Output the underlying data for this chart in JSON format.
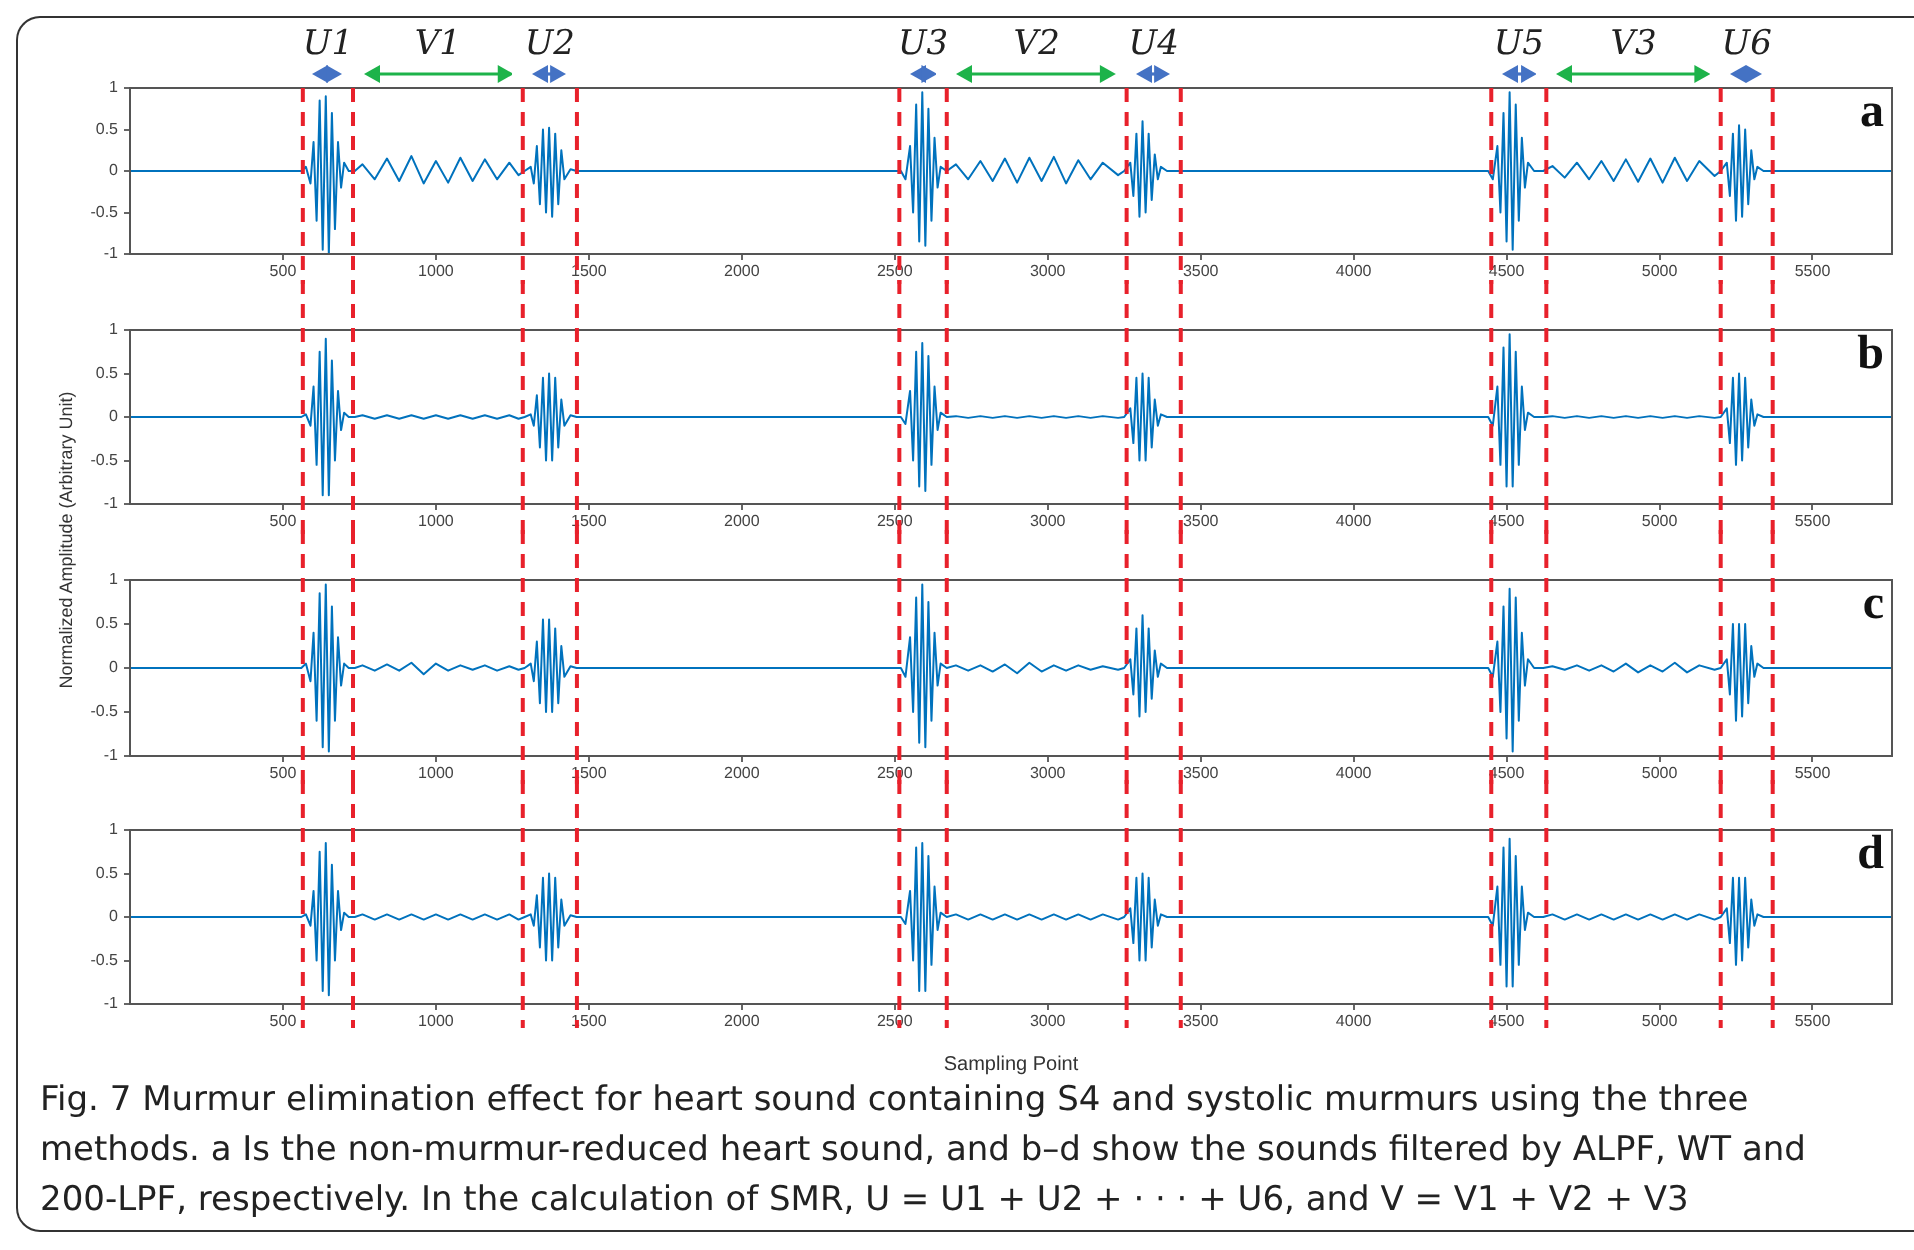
{
  "chart_data": [
    {
      "type": "line",
      "color": "#0072bd",
      "xlim": [
        0,
        5760
      ],
      "xticks": [
        500,
        1000,
        1500,
        2000,
        2500,
        3000,
        3500,
        4000,
        4500,
        5000,
        5500
      ],
      "ylim": [
        -1,
        1
      ],
      "yticks": [
        -1,
        -0.5,
        0,
        0.5,
        1
      ],
      "grid": false,
      "x": [
        0,
        540,
        560,
        575,
        590,
        600,
        610,
        620,
        630,
        640,
        650,
        660,
        670,
        680,
        690,
        700,
        715,
        735,
        760,
        800,
        840,
        880,
        920,
        960,
        1000,
        1040,
        1080,
        1120,
        1160,
        1200,
        1240,
        1270,
        1290,
        1310,
        1320,
        1330,
        1340,
        1350,
        1360,
        1370,
        1380,
        1390,
        1400,
        1410,
        1420,
        1440,
        1460,
        2000,
        2500,
        2520,
        2535,
        2550,
        2560,
        2570,
        2580,
        2590,
        2600,
        2610,
        2620,
        2630,
        2640,
        2650,
        2670,
        2700,
        2740,
        2780,
        2820,
        2860,
        2900,
        2940,
        2980,
        3020,
        3060,
        3100,
        3140,
        3180,
        3230,
        3250,
        3270,
        3280,
        3290,
        3300,
        3310,
        3320,
        3330,
        3340,
        3350,
        3360,
        3370,
        3390,
        3420,
        4000,
        4420,
        4440,
        4455,
        4470,
        4480,
        4490,
        4500,
        4510,
        4520,
        4530,
        4540,
        4550,
        4560,
        4570,
        4590,
        4620,
        4650,
        4690,
        4730,
        4770,
        4810,
        4850,
        4890,
        4930,
        4970,
        5010,
        5050,
        5090,
        5130,
        5180,
        5200,
        5220,
        5230,
        5240,
        5250,
        5260,
        5270,
        5280,
        5290,
        5300,
        5310,
        5320,
        5340,
        5370,
        5760
      ],
      "values": [
        0,
        0,
        0,
        0.05,
        -0.15,
        0.35,
        -0.6,
        0.85,
        -0.95,
        0.9,
        -1,
        0.7,
        -0.7,
        0.35,
        -0.2,
        0.1,
        0,
        0,
        0.08,
        -0.1,
        0.15,
        -0.12,
        0.18,
        -0.15,
        0.12,
        -0.14,
        0.16,
        -0.12,
        0.14,
        -0.1,
        0.1,
        -0.05,
        0,
        0.05,
        -0.15,
        0.3,
        -0.4,
        0.5,
        -0.5,
        0.52,
        -0.55,
        0.45,
        -0.4,
        0.25,
        -0.1,
        0.02,
        0,
        0,
        0,
        0,
        -0.1,
        0.3,
        -0.5,
        0.8,
        -0.85,
        0.95,
        -0.9,
        0.75,
        -0.6,
        0.4,
        -0.2,
        0.05,
        0,
        0.08,
        -0.1,
        0.12,
        -0.12,
        0.15,
        -0.14,
        0.16,
        -0.12,
        0.17,
        -0.15,
        0.13,
        -0.1,
        0.1,
        -0.05,
        0,
        0.1,
        -0.3,
        0.45,
        -0.55,
        0.6,
        -0.5,
        0.45,
        -0.35,
        0.2,
        -0.1,
        0.05,
        0,
        0,
        0,
        0,
        0,
        -0.1,
        0.3,
        -0.5,
        0.7,
        -0.85,
        0.95,
        -0.95,
        0.8,
        -0.6,
        0.4,
        -0.2,
        0.1,
        0,
        0,
        0.06,
        -0.08,
        0.1,
        -0.1,
        0.12,
        -0.12,
        0.14,
        -0.13,
        0.15,
        -0.14,
        0.16,
        -0.12,
        0.12,
        -0.06,
        0,
        0.1,
        -0.3,
        0.45,
        -0.6,
        0.55,
        -0.55,
        0.5,
        -0.4,
        0.25,
        -0.1,
        0.05,
        0,
        0,
        0
      ],
      "ref_lines": [
        {
          "axis": "x",
          "value": 565,
          "color": "#e8212b",
          "line_style": "dashed"
        },
        {
          "axis": "x",
          "value": 729,
          "color": "#e8212b",
          "line_style": "dashed"
        },
        {
          "axis": "x",
          "value": 1284,
          "color": "#e8212b",
          "line_style": "dashed"
        },
        {
          "axis": "x",
          "value": 1461,
          "color": "#e8212b",
          "line_style": "dashed"
        },
        {
          "axis": "x",
          "value": 2515,
          "color": "#e8212b",
          "line_style": "dashed"
        },
        {
          "axis": "x",
          "value": 2670,
          "color": "#e8212b",
          "line_style": "dashed"
        },
        {
          "axis": "x",
          "value": 3258,
          "color": "#e8212b",
          "line_style": "dashed"
        },
        {
          "axis": "x",
          "value": 3435,
          "color": "#e8212b",
          "line_style": "dashed"
        },
        {
          "axis": "x",
          "value": 4450,
          "color": "#e8212b",
          "line_style": "dashed"
        },
        {
          "axis": "x",
          "value": 4630,
          "color": "#e8212b",
          "line_style": "dashed"
        },
        {
          "axis": "x",
          "value": 5200,
          "color": "#e8212b",
          "line_style": "dashed"
        },
        {
          "axis": "x",
          "value": 5370,
          "color": "#e8212b",
          "line_style": "dashed"
        }
      ],
      "annotations": [
        "a",
        "U1",
        "V1",
        "U2",
        "U3",
        "V2",
        "U4",
        "U5",
        "V3",
        "U6"
      ]
    },
    {
      "type": "line",
      "color": "#0072bd",
      "xlim": [
        0,
        5760
      ],
      "xticks": [
        500,
        1000,
        1500,
        2000,
        2500,
        3000,
        3500,
        4000,
        4500,
        5000,
        5500
      ],
      "ylim": [
        -1,
        1
      ],
      "yticks": [
        -1,
        -0.5,
        0,
        0.5,
        1
      ],
      "grid": false,
      "ylabel": "Normalized Amplitude (Arbitrary Unit)",
      "x": [
        0,
        540,
        560,
        575,
        590,
        600,
        610,
        620,
        630,
        640,
        650,
        660,
        670,
        680,
        690,
        700,
        715,
        735,
        760,
        800,
        840,
        880,
        920,
        960,
        1000,
        1040,
        1080,
        1120,
        1160,
        1200,
        1240,
        1270,
        1290,
        1310,
        1320,
        1330,
        1340,
        1350,
        1360,
        1370,
        1380,
        1390,
        1400,
        1410,
        1420,
        1440,
        1460,
        2000,
        2500,
        2520,
        2535,
        2550,
        2560,
        2570,
        2580,
        2590,
        2600,
        2610,
        2620,
        2630,
        2640,
        2650,
        2670,
        2700,
        2740,
        2780,
        2820,
        2860,
        2900,
        2940,
        2980,
        3020,
        3060,
        3100,
        3140,
        3180,
        3230,
        3250,
        3270,
        3280,
        3290,
        3300,
        3310,
        3320,
        3330,
        3340,
        3350,
        3360,
        3370,
        3390,
        3420,
        4000,
        4420,
        4440,
        4455,
        4470,
        4480,
        4490,
        4500,
        4510,
        4520,
        4530,
        4540,
        4550,
        4560,
        4570,
        4590,
        4620,
        4650,
        4690,
        4730,
        4770,
        4810,
        4850,
        4890,
        4930,
        4970,
        5010,
        5050,
        5090,
        5130,
        5180,
        5200,
        5220,
        5230,
        5240,
        5250,
        5260,
        5270,
        5280,
        5290,
        5300,
        5310,
        5320,
        5340,
        5370,
        5760
      ],
      "values": [
        0,
        0,
        0,
        0.03,
        -0.1,
        0.35,
        -0.55,
        0.75,
        -0.9,
        0.9,
        -0.9,
        0.65,
        -0.5,
        0.3,
        -0.15,
        0.05,
        0,
        0,
        0.02,
        -0.02,
        0.02,
        -0.02,
        0.02,
        -0.02,
        0.02,
        -0.02,
        0.02,
        -0.02,
        0.02,
        -0.02,
        0.02,
        -0.02,
        0,
        0.03,
        -0.1,
        0.25,
        -0.35,
        0.45,
        -0.5,
        0.5,
        -0.5,
        0.45,
        -0.35,
        0.2,
        -0.1,
        0.02,
        0,
        0,
        0,
        0,
        -0.08,
        0.3,
        -0.5,
        0.75,
        -0.8,
        0.85,
        -0.85,
        0.7,
        -0.55,
        0.35,
        -0.15,
        0.05,
        0,
        0.01,
        -0.01,
        0.01,
        -0.01,
        0.01,
        -0.01,
        0.01,
        -0.01,
        0.01,
        -0.01,
        0.01,
        -0.01,
        0.01,
        -0.01,
        0,
        0.1,
        -0.3,
        0.45,
        -0.5,
        0.5,
        -0.5,
        0.45,
        -0.35,
        0.2,
        -0.1,
        0.03,
        0,
        0,
        0,
        0,
        0,
        -0.1,
        0.35,
        -0.55,
        0.8,
        -0.8,
        0.95,
        -0.8,
        0.75,
        -0.55,
        0.35,
        -0.15,
        0.05,
        0,
        0,
        0.01,
        -0.01,
        0.01,
        -0.01,
        0.01,
        -0.01,
        0.01,
        -0.01,
        0.01,
        -0.01,
        0.01,
        -0.01,
        0.01,
        -0.01,
        0,
        0.1,
        -0.3,
        0.45,
        -0.55,
        0.5,
        -0.5,
        0.45,
        -0.35,
        0.2,
        -0.1,
        0.03,
        0,
        0,
        0
      ],
      "ref_lines": [
        {
          "axis": "x",
          "value": 565,
          "color": "#e8212b",
          "line_style": "dashed"
        },
        {
          "axis": "x",
          "value": 729,
          "color": "#e8212b",
          "line_style": "dashed"
        },
        {
          "axis": "x",
          "value": 1284,
          "color": "#e8212b",
          "line_style": "dashed"
        },
        {
          "axis": "x",
          "value": 1461,
          "color": "#e8212b",
          "line_style": "dashed"
        },
        {
          "axis": "x",
          "value": 2515,
          "color": "#e8212b",
          "line_style": "dashed"
        },
        {
          "axis": "x",
          "value": 2670,
          "color": "#e8212b",
          "line_style": "dashed"
        },
        {
          "axis": "x",
          "value": 3258,
          "color": "#e8212b",
          "line_style": "dashed"
        },
        {
          "axis": "x",
          "value": 3435,
          "color": "#e8212b",
          "line_style": "dashed"
        },
        {
          "axis": "x",
          "value": 4450,
          "color": "#e8212b",
          "line_style": "dashed"
        },
        {
          "axis": "x",
          "value": 4630,
          "color": "#e8212b",
          "line_style": "dashed"
        },
        {
          "axis": "x",
          "value": 5200,
          "color": "#e8212b",
          "line_style": "dashed"
        },
        {
          "axis": "x",
          "value": 5370,
          "color": "#e8212b",
          "line_style": "dashed"
        }
      ],
      "annotations": [
        "b"
      ]
    },
    {
      "type": "line",
      "color": "#0072bd",
      "xlim": [
        0,
        5760
      ],
      "xticks": [
        500,
        1000,
        1500,
        2000,
        2500,
        3000,
        3500,
        4000,
        4500,
        5000,
        5500
      ],
      "ylim": [
        -1,
        1
      ],
      "yticks": [
        -1,
        -0.5,
        0,
        0.5,
        1
      ],
      "grid": false,
      "x": [
        0,
        540,
        560,
        575,
        590,
        600,
        610,
        620,
        630,
        640,
        650,
        660,
        670,
        680,
        690,
        700,
        715,
        735,
        760,
        800,
        840,
        880,
        920,
        960,
        1000,
        1040,
        1080,
        1120,
        1160,
        1200,
        1240,
        1270,
        1290,
        1310,
        1320,
        1330,
        1340,
        1350,
        1360,
        1370,
        1380,
        1390,
        1400,
        1410,
        1420,
        1440,
        1460,
        2000,
        2500,
        2520,
        2535,
        2550,
        2560,
        2570,
        2580,
        2590,
        2600,
        2610,
        2620,
        2630,
        2640,
        2650,
        2670,
        2700,
        2740,
        2780,
        2820,
        2860,
        2900,
        2940,
        2980,
        3020,
        3060,
        3100,
        3140,
        3180,
        3230,
        3250,
        3270,
        3280,
        3290,
        3300,
        3310,
        3320,
        3330,
        3340,
        3350,
        3360,
        3370,
        3390,
        3420,
        4000,
        4420,
        4440,
        4455,
        4470,
        4480,
        4490,
        4500,
        4510,
        4520,
        4530,
        4540,
        4550,
        4560,
        4570,
        4590,
        4620,
        4650,
        4690,
        4730,
        4770,
        4810,
        4850,
        4890,
        4930,
        4970,
        5010,
        5050,
        5090,
        5130,
        5180,
        5200,
        5220,
        5230,
        5240,
        5250,
        5260,
        5270,
        5280,
        5290,
        5300,
        5310,
        5320,
        5340,
        5370,
        5760
      ],
      "values": [
        0,
        0,
        0,
        0.05,
        -0.15,
        0.4,
        -0.6,
        0.85,
        -0.9,
        0.95,
        -0.95,
        0.7,
        -0.6,
        0.35,
        -0.2,
        0.05,
        0,
        0,
        0.03,
        -0.03,
        0.04,
        -0.03,
        0.06,
        -0.07,
        0.05,
        -0.03,
        0.03,
        -0.02,
        0.03,
        -0.03,
        0.02,
        -0.02,
        0,
        0.05,
        -0.15,
        0.3,
        -0.4,
        0.55,
        -0.5,
        0.55,
        -0.5,
        0.45,
        -0.4,
        0.25,
        -0.1,
        0.02,
        0,
        0,
        0,
        0,
        -0.1,
        0.35,
        -0.5,
        0.8,
        -0.85,
        0.95,
        -0.9,
        0.75,
        -0.6,
        0.4,
        -0.2,
        0.05,
        0,
        0.03,
        -0.03,
        0.03,
        -0.04,
        0.04,
        -0.06,
        0.06,
        -0.04,
        0.03,
        -0.03,
        0.03,
        -0.02,
        0.02,
        -0.02,
        0,
        0.1,
        -0.3,
        0.45,
        -0.55,
        0.6,
        -0.5,
        0.45,
        -0.35,
        0.2,
        -0.1,
        0.05,
        0,
        0,
        0,
        0,
        0,
        -0.1,
        0.3,
        -0.5,
        0.7,
        -0.8,
        0.9,
        -0.95,
        0.8,
        -0.6,
        0.4,
        -0.2,
        0.1,
        0,
        0,
        0.02,
        -0.02,
        0.03,
        -0.03,
        0.03,
        -0.04,
        0.05,
        -0.05,
        0.03,
        -0.04,
        0.06,
        -0.05,
        0.03,
        -0.02,
        0,
        0.1,
        -0.3,
        0.5,
        -0.6,
        0.5,
        -0.55,
        0.5,
        -0.4,
        0.25,
        -0.1,
        0.05,
        0,
        0,
        0
      ],
      "ref_lines": [
        {
          "axis": "x",
          "value": 565,
          "color": "#e8212b",
          "line_style": "dashed"
        },
        {
          "axis": "x",
          "value": 729,
          "color": "#e8212b",
          "line_style": "dashed"
        },
        {
          "axis": "x",
          "value": 1284,
          "color": "#e8212b",
          "line_style": "dashed"
        },
        {
          "axis": "x",
          "value": 1461,
          "color": "#e8212b",
          "line_style": "dashed"
        },
        {
          "axis": "x",
          "value": 2515,
          "color": "#e8212b",
          "line_style": "dashed"
        },
        {
          "axis": "x",
          "value": 2670,
          "color": "#e8212b",
          "line_style": "dashed"
        },
        {
          "axis": "x",
          "value": 3258,
          "color": "#e8212b",
          "line_style": "dashed"
        },
        {
          "axis": "x",
          "value": 3435,
          "color": "#e8212b",
          "line_style": "dashed"
        },
        {
          "axis": "x",
          "value": 4450,
          "color": "#e8212b",
          "line_style": "dashed"
        },
        {
          "axis": "x",
          "value": 4630,
          "color": "#e8212b",
          "line_style": "dashed"
        },
        {
          "axis": "x",
          "value": 5200,
          "color": "#e8212b",
          "line_style": "dashed"
        },
        {
          "axis": "x",
          "value": 5370,
          "color": "#e8212b",
          "line_style": "dashed"
        }
      ],
      "annotations": [
        "c"
      ]
    },
    {
      "type": "line",
      "color": "#0072bd",
      "xlim": [
        0,
        5760
      ],
      "xticks": [
        500,
        1000,
        1500,
        2000,
        2500,
        3000,
        3500,
        4000,
        4500,
        5000,
        5500
      ],
      "ylim": [
        -1,
        1
      ],
      "yticks": [
        -1,
        -0.5,
        0,
        0.5,
        1
      ],
      "grid": false,
      "xlabel": "Sampling Point",
      "x": [
        0,
        540,
        560,
        575,
        590,
        600,
        610,
        620,
        630,
        640,
        650,
        660,
        670,
        680,
        690,
        700,
        715,
        735,
        760,
        800,
        840,
        880,
        920,
        960,
        1000,
        1040,
        1080,
        1120,
        1160,
        1200,
        1240,
        1270,
        1290,
        1310,
        1320,
        1330,
        1340,
        1350,
        1360,
        1370,
        1380,
        1390,
        1400,
        1410,
        1420,
        1440,
        1460,
        2000,
        2500,
        2520,
        2535,
        2550,
        2560,
        2570,
        2580,
        2590,
        2600,
        2610,
        2620,
        2630,
        2640,
        2650,
        2670,
        2700,
        2740,
        2780,
        2820,
        2860,
        2900,
        2940,
        2980,
        3020,
        3060,
        3100,
        3140,
        3180,
        3230,
        3250,
        3270,
        3280,
        3290,
        3300,
        3310,
        3320,
        3330,
        3340,
        3350,
        3360,
        3370,
        3390,
        3420,
        4000,
        4420,
        4440,
        4455,
        4470,
        4480,
        4490,
        4500,
        4510,
        4520,
        4530,
        4540,
        4550,
        4560,
        4570,
        4590,
        4620,
        4650,
        4690,
        4730,
        4770,
        4810,
        4850,
        4890,
        4930,
        4970,
        5010,
        5050,
        5090,
        5130,
        5180,
        5200,
        5220,
        5230,
        5240,
        5250,
        5260,
        5270,
        5280,
        5290,
        5300,
        5310,
        5320,
        5340,
        5370,
        5760
      ],
      "values": [
        0,
        0,
        0,
        0.03,
        -0.1,
        0.3,
        -0.5,
        0.75,
        -0.85,
        0.85,
        -0.9,
        0.6,
        -0.5,
        0.3,
        -0.15,
        0.05,
        0,
        0,
        0.03,
        -0.03,
        0.03,
        -0.03,
        0.03,
        -0.03,
        0.03,
        -0.03,
        0.03,
        -0.03,
        0.03,
        -0.03,
        0.03,
        -0.03,
        0,
        0.03,
        -0.1,
        0.25,
        -0.35,
        0.45,
        -0.5,
        0.5,
        -0.5,
        0.45,
        -0.35,
        0.2,
        -0.1,
        0.02,
        0,
        0,
        0,
        0,
        -0.08,
        0.3,
        -0.5,
        0.8,
        -0.85,
        0.85,
        -0.85,
        0.7,
        -0.55,
        0.35,
        -0.15,
        0.05,
        0,
        0.03,
        -0.03,
        0.03,
        -0.03,
        0.03,
        -0.03,
        0.03,
        -0.03,
        0.03,
        -0.03,
        0.03,
        -0.03,
        0.03,
        -0.03,
        0,
        0.1,
        -0.3,
        0.45,
        -0.5,
        0.5,
        -0.5,
        0.45,
        -0.35,
        0.2,
        -0.1,
        0.03,
        0,
        0,
        0,
        0,
        0,
        -0.1,
        0.35,
        -0.55,
        0.8,
        -0.8,
        0.9,
        -0.8,
        0.7,
        -0.55,
        0.35,
        -0.15,
        0.05,
        0,
        0,
        0.03,
        -0.03,
        0.03,
        -0.03,
        0.03,
        -0.03,
        0.03,
        -0.03,
        0.03,
        -0.03,
        0.03,
        -0.03,
        0.03,
        -0.03,
        0,
        0.1,
        -0.3,
        0.45,
        -0.55,
        0.45,
        -0.5,
        0.45,
        -0.35,
        0.2,
        -0.1,
        0.03,
        0,
        0,
        0
      ],
      "ref_lines": [
        {
          "axis": "x",
          "value": 565,
          "color": "#e8212b",
          "line_style": "dashed"
        },
        {
          "axis": "x",
          "value": 729,
          "color": "#e8212b",
          "line_style": "dashed"
        },
        {
          "axis": "x",
          "value": 1284,
          "color": "#e8212b",
          "line_style": "dashed"
        },
        {
          "axis": "x",
          "value": 1461,
          "color": "#e8212b",
          "line_style": "dashed"
        },
        {
          "axis": "x",
          "value": 2515,
          "color": "#e8212b",
          "line_style": "dashed"
        },
        {
          "axis": "x",
          "value": 2670,
          "color": "#e8212b",
          "line_style": "dashed"
        },
        {
          "axis": "x",
          "value": 3258,
          "color": "#e8212b",
          "line_style": "dashed"
        },
        {
          "axis": "x",
          "value": 3435,
          "color": "#e8212b",
          "line_style": "dashed"
        },
        {
          "axis": "x",
          "value": 4450,
          "color": "#e8212b",
          "line_style": "dashed"
        },
        {
          "axis": "x",
          "value": 4630,
          "color": "#e8212b",
          "line_style": "dashed"
        },
        {
          "axis": "x",
          "value": 5200,
          "color": "#e8212b",
          "line_style": "dashed"
        },
        {
          "axis": "x",
          "value": 5370,
          "color": "#e8212b",
          "line_style": "dashed"
        }
      ],
      "annotations": [
        "d",
        "Fig. 7  Murmur elimination effect for heart sound containing S4 and systolic murmurs using the three methods. a Is the non-murmur-reduced heart sound, and b–d show the sounds filtered by ALPF, WT and 200-LPF, respectively. In the calculation of SMR, U = U1 + U2 + · · · + U6, and V = V1 + V2 + V3"
      ]
    }
  ]
}
